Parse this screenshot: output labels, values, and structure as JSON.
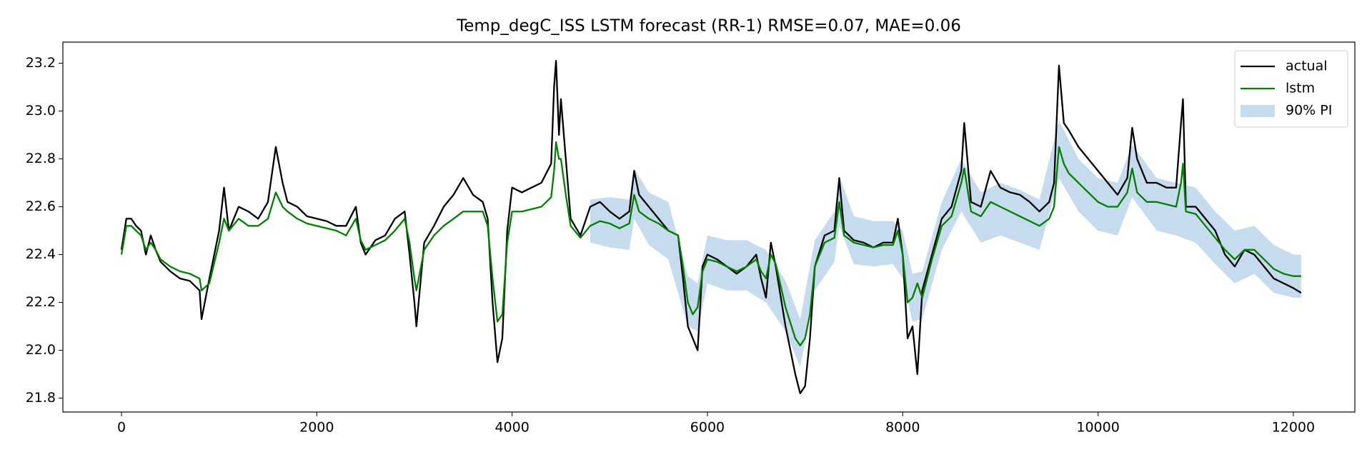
{
  "chart_data": {
    "type": "line",
    "title": "Temp_degC_ISS LSTM forecast (RR-1)  RMSE=0.07, MAE=0.06",
    "x": [
      0,
      50,
      100,
      150,
      200,
      250,
      300,
      350,
      400,
      500,
      600,
      700,
      800,
      820,
      900,
      1000,
      1050,
      1100,
      1200,
      1300,
      1400,
      1500,
      1580,
      1650,
      1700,
      1800,
      1900,
      2000,
      2100,
      2200,
      2300,
      2400,
      2450,
      2500,
      2600,
      2700,
      2800,
      2900,
      2950,
      3000,
      3020,
      3100,
      3200,
      3300,
      3400,
      3500,
      3600,
      3700,
      3750,
      3800,
      3850,
      3900,
      3950,
      4000,
      4100,
      4200,
      4300,
      4400,
      4430,
      4450,
      4480,
      4500,
      4550,
      4600,
      4700,
      4800,
      4900,
      5000,
      5100,
      5200,
      5250,
      5300,
      5400,
      5500,
      5600,
      5700,
      5750,
      5800,
      5850,
      5900,
      5950,
      6000,
      6100,
      6200,
      6300,
      6400,
      6500,
      6550,
      6600,
      6650,
      6700,
      6800,
      6900,
      6950,
      7000,
      7050,
      7100,
      7200,
      7300,
      7350,
      7400,
      7500,
      7600,
      7700,
      7800,
      7900,
      7950,
      8000,
      8050,
      8100,
      8150,
      8200,
      8300,
      8400,
      8500,
      8600,
      8630,
      8700,
      8800,
      8900,
      9000,
      9100,
      9200,
      9300,
      9400,
      9500,
      9550,
      9600,
      9650,
      9700,
      9800,
      9900,
      10000,
      10100,
      10200,
      10300,
      10350,
      10400,
      10500,
      10600,
      10700,
      10800,
      10850,
      10870,
      10900,
      11000,
      11100,
      11200,
      11300,
      11400,
      11500,
      11600,
      11700,
      11800,
      11900,
      12000,
      12080
    ],
    "series": [
      {
        "name": "actual",
        "color": "#000000",
        "values": [
          22.42,
          22.55,
          22.55,
          22.52,
          22.5,
          22.4,
          22.48,
          22.42,
          22.37,
          22.33,
          22.3,
          22.29,
          22.25,
          22.13,
          22.3,
          22.5,
          22.68,
          22.5,
          22.6,
          22.58,
          22.55,
          22.62,
          22.85,
          22.7,
          22.62,
          22.6,
          22.56,
          22.55,
          22.54,
          22.52,
          22.52,
          22.6,
          22.45,
          22.4,
          22.46,
          22.48,
          22.55,
          22.58,
          22.4,
          22.2,
          22.1,
          22.45,
          22.52,
          22.6,
          22.65,
          22.72,
          22.65,
          22.62,
          22.55,
          22.2,
          21.95,
          22.05,
          22.5,
          22.68,
          22.66,
          22.68,
          22.7,
          22.78,
          23.1,
          23.21,
          22.9,
          23.05,
          22.8,
          22.55,
          22.48,
          22.6,
          22.62,
          22.58,
          22.55,
          22.58,
          22.75,
          22.65,
          22.6,
          22.55,
          22.5,
          22.48,
          22.3,
          22.1,
          22.05,
          22.0,
          22.35,
          22.4,
          22.38,
          22.35,
          22.32,
          22.35,
          22.4,
          22.3,
          22.22,
          22.45,
          22.35,
          22.1,
          21.9,
          21.82,
          21.85,
          22.05,
          22.35,
          22.48,
          22.5,
          22.72,
          22.5,
          22.46,
          22.45,
          22.43,
          22.45,
          22.45,
          22.55,
          22.4,
          22.05,
          22.1,
          21.9,
          22.25,
          22.4,
          22.55,
          22.6,
          22.75,
          22.95,
          22.62,
          22.6,
          22.75,
          22.68,
          22.66,
          22.65,
          22.62,
          22.58,
          22.62,
          22.7,
          23.19,
          22.95,
          22.92,
          22.85,
          22.8,
          22.75,
          22.7,
          22.65,
          22.72,
          22.93,
          22.8,
          22.7,
          22.7,
          22.68,
          22.68,
          22.95,
          23.05,
          22.6,
          22.6,
          22.55,
          22.5,
          22.4,
          22.35,
          22.42,
          22.4,
          22.35,
          22.3,
          22.28,
          22.26,
          22.24
        ]
      },
      {
        "name": "lstm",
        "color": "#008000",
        "values": [
          22.4,
          22.52,
          22.52,
          22.5,
          22.48,
          22.42,
          22.45,
          22.42,
          22.38,
          22.35,
          22.33,
          22.32,
          22.3,
          22.25,
          22.28,
          22.45,
          22.55,
          22.5,
          22.55,
          22.52,
          22.52,
          22.55,
          22.66,
          22.6,
          22.58,
          22.55,
          22.53,
          22.52,
          22.51,
          22.5,
          22.48,
          22.55,
          22.46,
          22.42,
          22.44,
          22.46,
          22.5,
          22.55,
          22.45,
          22.3,
          22.25,
          22.42,
          22.48,
          22.52,
          22.55,
          22.58,
          22.58,
          22.58,
          22.52,
          22.3,
          22.12,
          22.15,
          22.45,
          22.58,
          22.58,
          22.59,
          22.6,
          22.64,
          22.75,
          22.87,
          22.8,
          22.8,
          22.65,
          22.52,
          22.47,
          22.52,
          22.54,
          22.53,
          22.51,
          22.53,
          22.65,
          22.58,
          22.55,
          22.53,
          22.5,
          22.48,
          22.35,
          22.2,
          22.15,
          22.18,
          22.33,
          22.38,
          22.37,
          22.35,
          22.33,
          22.35,
          22.38,
          22.33,
          22.3,
          22.4,
          22.36,
          22.18,
          22.05,
          22.02,
          22.05,
          22.15,
          22.35,
          22.45,
          22.47,
          22.62,
          22.48,
          22.45,
          22.44,
          22.43,
          22.44,
          22.44,
          22.5,
          22.4,
          22.2,
          22.22,
          22.28,
          22.22,
          22.38,
          22.52,
          22.56,
          22.7,
          22.76,
          22.58,
          22.56,
          22.62,
          22.6,
          22.58,
          22.56,
          22.54,
          22.52,
          22.55,
          22.6,
          22.85,
          22.78,
          22.74,
          22.7,
          22.66,
          22.62,
          22.6,
          22.6,
          22.66,
          22.76,
          22.66,
          22.62,
          22.62,
          22.61,
          22.6,
          22.7,
          22.78,
          22.58,
          22.57,
          22.52,
          22.47,
          22.42,
          22.38,
          22.42,
          22.42,
          22.38,
          22.34,
          22.32,
          22.31,
          22.31
        ]
      }
    ],
    "band": {
      "name": "90% PI",
      "color": "#c6dbed",
      "x": [
        4800,
        5000,
        5200,
        5250,
        5400,
        5600,
        5800,
        5900,
        6000,
        6200,
        6400,
        6600,
        6800,
        6950,
        7100,
        7300,
        7350,
        7500,
        7700,
        7900,
        8000,
        8100,
        8200,
        8400,
        8600,
        8800,
        9000,
        9200,
        9400,
        9600,
        9800,
        10000,
        10200,
        10350,
        10600,
        10800,
        11000,
        11200,
        11400,
        11600,
        11800,
        12000,
        12080
      ],
      "lower": [
        22.45,
        22.43,
        22.42,
        22.55,
        22.44,
        22.38,
        22.1,
        22.08,
        22.28,
        22.25,
        22.25,
        22.2,
        22.08,
        21.93,
        22.25,
        22.37,
        22.52,
        22.36,
        22.35,
        22.36,
        22.3,
        22.12,
        22.13,
        22.42,
        22.58,
        22.45,
        22.48,
        22.45,
        22.42,
        22.72,
        22.58,
        22.5,
        22.48,
        22.64,
        22.5,
        22.48,
        22.45,
        22.36,
        22.28,
        22.32,
        22.24,
        22.22,
        22.22
      ],
      "upper": [
        22.63,
        22.64,
        22.63,
        22.76,
        22.66,
        22.62,
        22.31,
        22.28,
        22.48,
        22.46,
        22.46,
        22.42,
        22.29,
        22.13,
        22.46,
        22.58,
        22.73,
        22.56,
        22.54,
        22.54,
        22.5,
        22.32,
        22.33,
        22.62,
        22.8,
        22.66,
        22.7,
        22.67,
        22.63,
        22.96,
        22.8,
        22.72,
        22.7,
        22.86,
        22.72,
        22.7,
        22.68,
        22.58,
        22.5,
        22.52,
        22.44,
        22.4,
        22.4
      ]
    },
    "xlim": [
      -600,
      12630
    ],
    "ylim": [
      21.742,
      23.288
    ],
    "xticks": [
      0,
      2000,
      4000,
      6000,
      8000,
      10000,
      12000
    ],
    "yticks": [
      21.8,
      {
        "value": 22,
        "label": "22.0"
      },
      22.2,
      22.4,
      22.6,
      22.8,
      {
        "value": 23,
        "label": "23.0"
      },
      23.2
    ],
    "grid": false,
    "legend": "upper right"
  }
}
